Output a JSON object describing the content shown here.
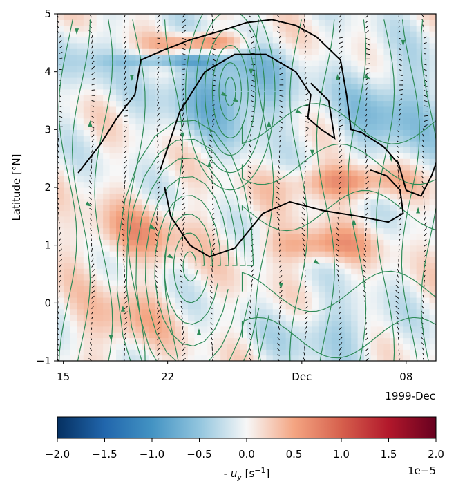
{
  "chart_data": {
    "type": "heatmap",
    "title": "",
    "xlabel": "",
    "ylabel": "Latitude [°N]",
    "x_ticks": [
      {
        "value": "1999-11-15",
        "label": "15"
      },
      {
        "value": "1999-11-22",
        "label": "22"
      },
      {
        "value": "1999-12-01",
        "label": "Dec"
      },
      {
        "value": "1999-12-08",
        "label": "08"
      }
    ],
    "x_offset_label": "1999-Dec",
    "xlim": [
      "1999-11-14.6",
      "1999-12-10"
    ],
    "ylim": [
      -1,
      5
    ],
    "y_ticks": [
      {
        "value": -1,
        "label": "−1"
      },
      {
        "value": 0,
        "label": "0"
      },
      {
        "value": 1,
        "label": "1"
      },
      {
        "value": 2,
        "label": "2"
      },
      {
        "value": 3,
        "label": "3"
      },
      {
        "value": 4,
        "label": "4"
      },
      {
        "value": 5,
        "label": "5"
      }
    ],
    "colorbar": {
      "label": "- u_y [s⁻¹]",
      "label_parts": {
        "prefix": "- ",
        "var": "u",
        "sub": "y",
        "unit_pre": " [s",
        "sup": "−1",
        "unit_post": "]"
      },
      "colormap": "RdBu_r",
      "range": [
        -2e-05,
        2e-05
      ],
      "ticks": [
        {
          "value": -2.0,
          "label": "−2.0"
        },
        {
          "value": -1.5,
          "label": "−1.5"
        },
        {
          "value": -1.0,
          "label": "−1.0"
        },
        {
          "value": -0.5,
          "label": "−0.5"
        },
        {
          "value": 0.0,
          "label": "0.0"
        },
        {
          "value": 0.5,
          "label": "0.5"
        },
        {
          "value": 1.0,
          "label": "1.0"
        },
        {
          "value": 1.5,
          "label": "1.5"
        },
        {
          "value": 2.0,
          "label": "2.0"
        }
      ],
      "offset_label": "1e−5"
    },
    "overlays": {
      "streamline_color": "#2e8b57",
      "contour_color": "#000000",
      "quiver_color": "#000000"
    }
  }
}
